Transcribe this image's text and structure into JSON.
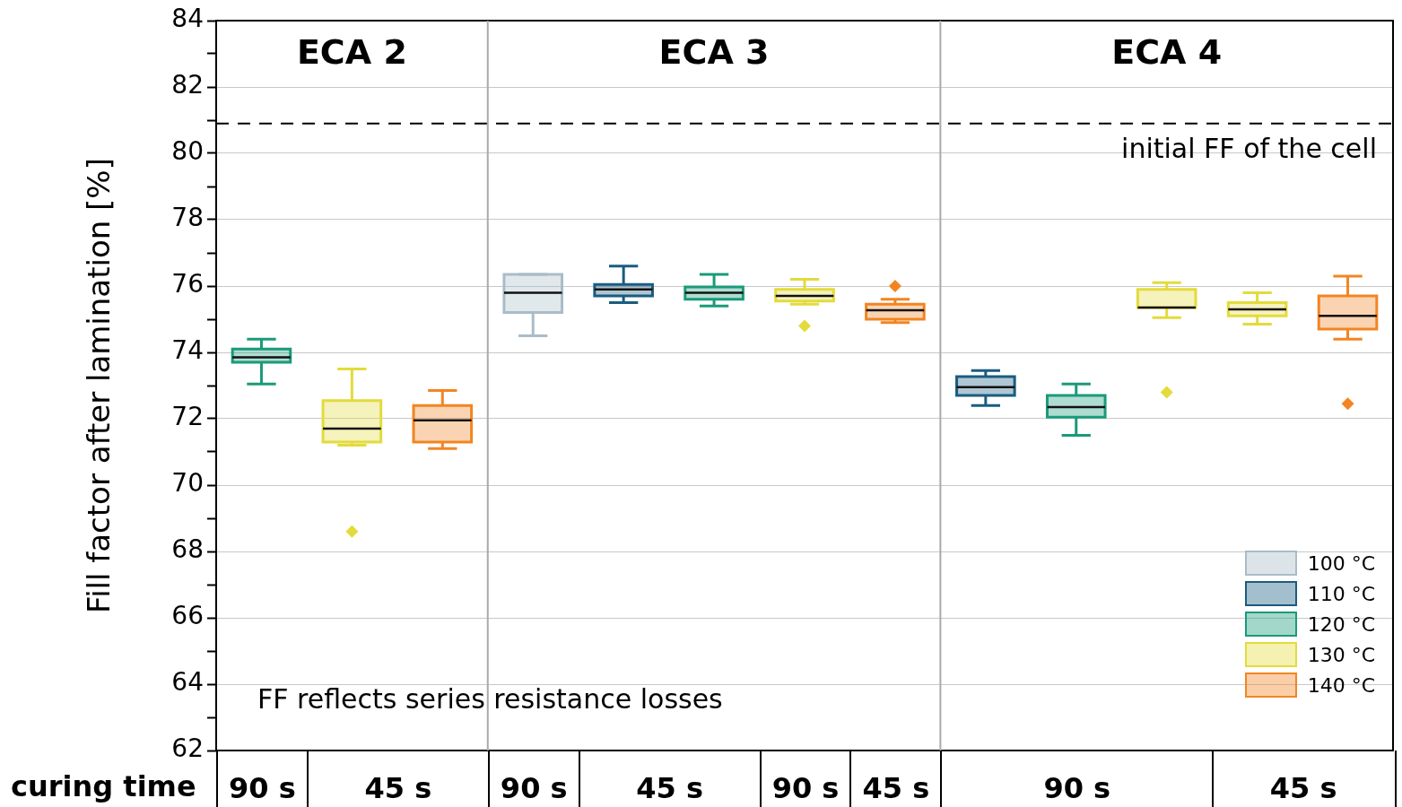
{
  "chart_data": {
    "type": "box",
    "xlabel": "curing time",
    "ylabel": "Fill factor after lamination [%]",
    "annotations": [
      "ECA 2",
      "ECA 3",
      "ECA 4",
      "90 s",
      "45 s",
      "90 s",
      "45 s",
      "90 s",
      "45 s",
      "90 s",
      "45 s",
      "FF reflects series resistance losses"
    ],
    "categories": [
      null,
      null,
      null,
      null,
      null,
      null,
      null,
      null,
      null,
      null,
      null,
      null,
      null
    ],
    "series": [
      {
        "name": "100 °C",
        "color": "#a9bcc8",
        "boxes": [
          null,
          null,
          null,
          {
            "low": 74.5,
            "q1": 75.2,
            "median": 75.8,
            "q3": 76.35,
            "high": 76.35
          },
          null,
          null,
          null,
          null,
          null,
          null,
          null,
          null,
          null
        ]
      },
      {
        "name": "110 °C",
        "color": "#1a5c80",
        "boxes": [
          null,
          null,
          null,
          null,
          {
            "low": 75.5,
            "q1": 75.7,
            "median": 75.9,
            "q3": 76.05,
            "high": 76.6
          },
          null,
          null,
          null,
          {
            "low": 72.4,
            "q1": 72.7,
            "median": 72.95,
            "q3": 73.27,
            "high": 73.45
          },
          null,
          null,
          null,
          null
        ]
      },
      {
        "name": "120 °C",
        "color": "#1a9a7a",
        "boxes": [
          {
            "low": 73.05,
            "q1": 73.7,
            "median": 73.85,
            "q3": 74.1,
            "high": 74.4
          },
          null,
          null,
          null,
          null,
          {
            "low": 75.4,
            "q1": 75.6,
            "median": 75.8,
            "q3": 75.97,
            "high": 76.35
          },
          null,
          null,
          null,
          {
            "low": 71.5,
            "q1": 72.05,
            "median": 72.35,
            "q3": 72.7,
            "high": 73.05
          },
          null,
          null,
          null
        ]
      },
      {
        "name": "130 °C",
        "color": "#e3db3c",
        "boxes": [
          null,
          {
            "low": 71.2,
            "q1": 71.3,
            "median": 71.7,
            "q3": 72.55,
            "high": 73.5,
            "outliers": [
              68.6
            ]
          },
          null,
          null,
          null,
          null,
          {
            "low": 75.45,
            "q1": 75.55,
            "median": 75.7,
            "q3": 75.9,
            "high": 76.2,
            "outliers": [
              74.8
            ]
          },
          null,
          null,
          null,
          {
            "low": 75.05,
            "q1": 75.35,
            "median": 75.35,
            "q3": 75.9,
            "high": 76.1,
            "outliers": [
              72.8
            ]
          },
          {
            "low": 74.85,
            "q1": 75.1,
            "median": 75.3,
            "q3": 75.5,
            "high": 75.8
          },
          null
        ]
      },
      {
        "name": "140 °C",
        "color": "#f28522",
        "boxes": [
          null,
          null,
          {
            "low": 71.1,
            "q1": 71.3,
            "median": 71.95,
            "q3": 72.4,
            "high": 72.85
          },
          null,
          null,
          null,
          null,
          {
            "low": 74.9,
            "q1": 75.0,
            "median": 75.27,
            "q3": 75.45,
            "high": 75.6,
            "outliers": [
              76.0
            ]
          },
          null,
          null,
          null,
          null,
          {
            "low": 74.4,
            "q1": 74.7,
            "median": 75.1,
            "q3": 75.7,
            "high": 76.3,
            "outliers": [
              72.45
            ]
          }
        ]
      }
    ],
    "ylim": [
      62,
      84
    ],
    "yticks": [
      62,
      {
        "value": 63,
        "label": null
      },
      64,
      {
        "value": 65,
        "label": null
      },
      66,
      {
        "value": 67,
        "label": null
      },
      68,
      {
        "value": 69,
        "label": null
      },
      70,
      {
        "value": 71,
        "label": null
      },
      72,
      {
        "value": 73,
        "label": null
      },
      74,
      {
        "value": 75,
        "label": null
      },
      76,
      {
        "value": 77,
        "label": null
      },
      78,
      {
        "value": 79,
        "label": null
      },
      80,
      {
        "value": 81,
        "label": null
      },
      82,
      {
        "value": 83,
        "label": null
      },
      84
    ],
    "grid": "y",
    "legend": "bottom right",
    "ref_lines": [
      {
        "axis": "y",
        "value": 80.9,
        "line_style": "dashed",
        "color": "#000000",
        "label": "initial FF of the cell"
      }
    ]
  }
}
